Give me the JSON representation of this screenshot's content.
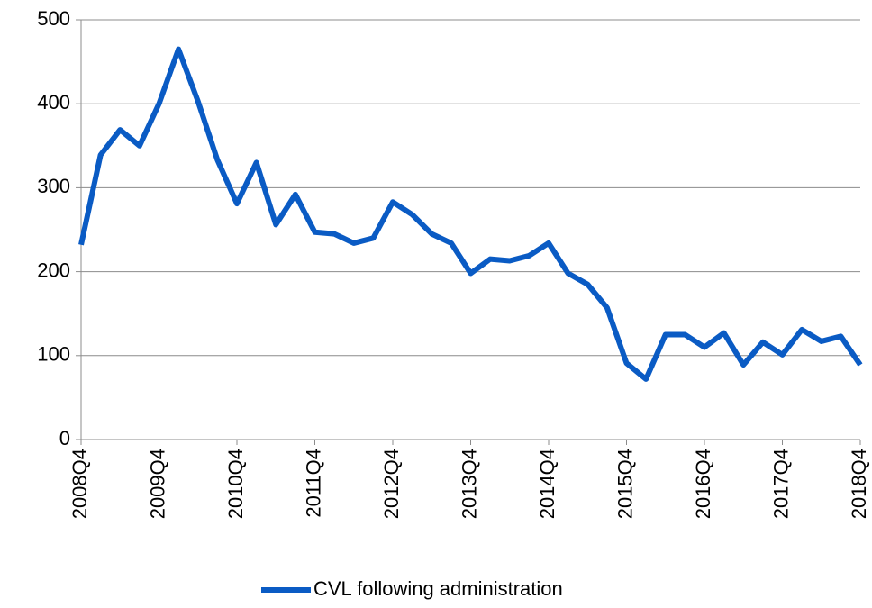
{
  "chart_data": {
    "type": "line",
    "categories": [
      "2008Q4",
      null,
      null,
      null,
      "2009Q4",
      null,
      null,
      null,
      "2010Q4",
      null,
      null,
      null,
      "2011Q4",
      null,
      null,
      null,
      "2012Q4",
      null,
      null,
      null,
      "2013Q4",
      null,
      null,
      null,
      "2014Q4",
      null,
      null,
      null,
      "2015Q4",
      null,
      null,
      null,
      "2016Q4",
      null,
      null,
      null,
      "2017Q4",
      null,
      null,
      null,
      "2018Q4"
    ],
    "series": [
      {
        "name": "CVL following administration",
        "color": "#0a5bc4",
        "values": [
          232,
          339,
          369,
          350,
          400,
          465,
          403,
          333,
          281,
          330,
          256,
          292,
          247,
          245,
          234,
          240,
          283,
          268,
          245,
          234,
          198,
          215,
          213,
          219,
          234,
          198,
          185,
          157,
          91,
          72,
          125,
          125,
          110,
          127,
          89,
          116,
          101,
          131,
          117,
          123,
          89
        ]
      }
    ],
    "ylim": [
      0,
      500
    ],
    "yticks": [
      0,
      100,
      200,
      300,
      400,
      500
    ],
    "grid": true,
    "legend": "bottom"
  }
}
